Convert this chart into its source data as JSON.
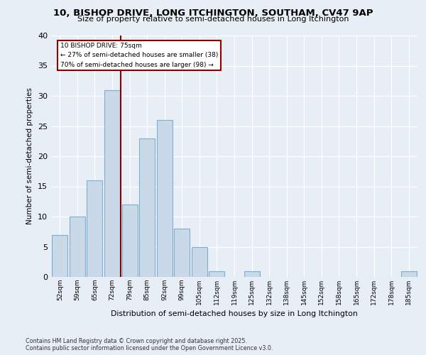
{
  "title1": "10, BISHOP DRIVE, LONG ITCHINGTON, SOUTHAM, CV47 9AP",
  "title2": "Size of property relative to semi-detached houses in Long Itchington",
  "xlabel": "Distribution of semi-detached houses by size in Long Itchington",
  "ylabel": "Number of semi-detached properties",
  "categories": [
    "52sqm",
    "59sqm",
    "65sqm",
    "72sqm",
    "79sqm",
    "85sqm",
    "92sqm",
    "99sqm",
    "105sqm",
    "112sqm",
    "119sqm",
    "125sqm",
    "132sqm",
    "138sqm",
    "145sqm",
    "152sqm",
    "158sqm",
    "165sqm",
    "172sqm",
    "178sqm",
    "185sqm"
  ],
  "values": [
    7,
    10,
    16,
    31,
    12,
    23,
    26,
    8,
    5,
    1,
    0,
    1,
    0,
    0,
    0,
    0,
    0,
    0,
    0,
    0,
    1
  ],
  "bar_color": "#c9d9e8",
  "bar_edge_color": "#7fafd0",
  "property_line_x": 3.5,
  "annotation_title": "10 BISHOP DRIVE: 75sqm",
  "annotation_line1": "← 27% of semi-detached houses are smaller (38)",
  "annotation_line2": "70% of semi-detached houses are larger (98) →",
  "ylim": [
    0,
    40
  ],
  "yticks": [
    0,
    5,
    10,
    15,
    20,
    25,
    30,
    35,
    40
  ],
  "line_color": "#8b0000",
  "background_color": "#e8eef5",
  "footer1": "Contains HM Land Registry data © Crown copyright and database right 2025.",
  "footer2": "Contains public sector information licensed under the Open Government Licence v3.0."
}
